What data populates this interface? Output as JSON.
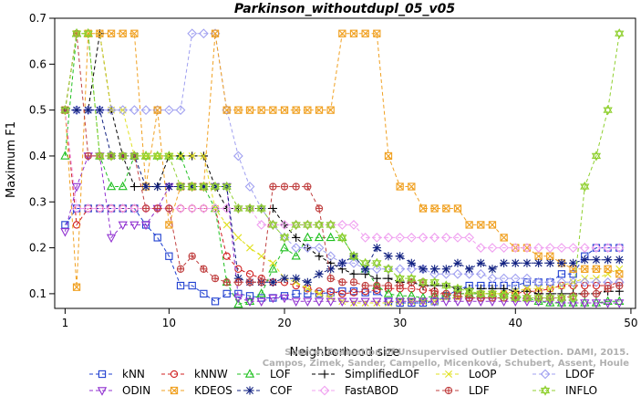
{
  "chart_data": {
    "type": "line",
    "title": "Parkinson_withoutdupl_05_v05",
    "xlabel": "Neighborhood size",
    "ylabel": "Maximum F1",
    "xlim": [
      1,
      50
    ],
    "ylim": [
      0.08,
      0.7
    ],
    "xticks": [
      1,
      10,
      20,
      30,
      40,
      50
    ],
    "yticks": [
      0.1,
      0.2,
      0.3,
      0.4,
      0.5,
      0.6,
      0.7
    ],
    "grid": false,
    "legend_position": "bottom",
    "watermark_lines": [
      "Source: Evaluation of Unsupervised Outlier Detection. DAMI, 2015.",
      "Campos, Zimek, Sander, Campello, Micenková, Schubert, Assent, Houle"
    ],
    "series": [
      {
        "name": "kNN",
        "color": "#1f3fd0",
        "marker": "square",
        "values": [
          0.25,
          0.2857,
          0.2857,
          0.2857,
          0.2857,
          0.2857,
          0.2857,
          0.25,
          0.2222,
          0.1818,
          0.1176,
          0.1176,
          0.1,
          0.0833,
          0.1,
          0.1,
          0.0952,
          0.0909,
          0.0909,
          0.0952,
          0.1,
          0.1,
          0.1,
          0.1026,
          0.1053,
          0.1053,
          0.1026,
          0.1053,
          0.0833,
          0.08,
          0.08,
          0.08,
          0.0833,
          0.0952,
          0.1081,
          0.1176,
          0.1176,
          0.1176,
          0.1176,
          0.1176,
          0.125,
          0.125,
          0.125,
          0.1429,
          0.1429,
          0.1818,
          0.2,
          0.2,
          0.2
        ]
      },
      {
        "name": "kNNW",
        "color": "#d02020",
        "marker": "circle",
        "values": [
          0.5,
          0.25,
          0.2857,
          0.2857,
          0.2857,
          0.2857,
          0.2857,
          0.2857,
          0.2857,
          0.2857,
          0.2857,
          0.2857,
          0.2857,
          0.2857,
          0.1818,
          0.1538,
          0.1429,
          0.1333,
          0.125,
          0.125,
          0.1176,
          0.1111,
          0.1053,
          0.1053,
          0.1,
          0.1026,
          0.1053,
          0.1081,
          0.1111,
          0.1111,
          0.1111,
          0.1081,
          0.1053,
          0.1,
          0.1,
          0.1,
          0.1,
          0.1,
          0.1,
          0.1,
          0.1053,
          0.1053,
          0.1111,
          0.1176,
          0.1176,
          0.1176,
          0.1176,
          0.1176,
          0.125
        ]
      },
      {
        "name": "LOF",
        "color": "#20c020",
        "marker": "triangle",
        "values": [
          0.4,
          0.6667,
          0.6667,
          0.4,
          0.3333,
          0.3333,
          0.4,
          0.4,
          0.4,
          0.4,
          0.4,
          0.3333,
          0.3333,
          0.2857,
          0.125,
          0.0769,
          0.0833,
          0.1,
          0.1538,
          0.2,
          0.1818,
          0.2222,
          0.2222,
          0.2222,
          0.2222,
          0.1818,
          0.1538,
          0.1176,
          0.1,
          0.0952,
          0.0952,
          0.0909,
          0.0952,
          0.0952,
          0.1,
          0.1,
          0.1,
          0.1,
          0.1,
          0.0952,
          0.0909,
          0.0833,
          0.08,
          0.08,
          0.08,
          0.08,
          0.08,
          0.0833,
          0.0833
        ]
      },
      {
        "name": "SimplifiedLOF",
        "color": "#000000",
        "marker": "plus",
        "values": [
          0.5,
          0.5,
          0.5,
          0.6667,
          0.5,
          0.4,
          0.3333,
          0.3333,
          0.3333,
          0.4,
          0.4,
          0.4,
          0.4,
          0.3333,
          0.2857,
          0.2857,
          0.2857,
          0.2857,
          0.2857,
          0.25,
          0.2222,
          0.2,
          0.1818,
          0.1667,
          0.1538,
          0.1429,
          0.1429,
          0.1333,
          0.1333,
          0.125,
          0.125,
          0.1176,
          0.1176,
          0.1176,
          0.1111,
          0.1111,
          0.1111,
          0.1111,
          0.1111,
          0.1053,
          0.1053,
          0.1,
          0.1,
          0.1,
          0.1,
          0.1,
          0.1,
          0.1053,
          0.1053
        ]
      },
      {
        "name": "LoOP",
        "color": "#e0e020",
        "marker": "x",
        "values": [
          0.5,
          0.6667,
          0.6667,
          0.6667,
          0.5,
          0.5,
          0.4,
          0.4,
          0.4,
          0.4,
          0.4,
          0.4,
          0.4,
          0.2857,
          0.25,
          0.2222,
          0.2,
          0.1818,
          0.1667,
          0.1333,
          0.125,
          0.1111,
          0.1,
          0.0909,
          0.0833,
          0.08,
          0.08,
          0.08,
          0.08,
          0.0833,
          0.0833,
          0.0833,
          0.0833,
          0.0909,
          0.0909,
          0.1,
          0.1,
          0.1,
          0.1,
          0.1053,
          0.1111,
          0.1111,
          0.1111,
          0.1176,
          0.125,
          0.1333,
          0.1333,
          0.1429,
          0.1538
        ]
      },
      {
        "name": "LDOF",
        "color": "#a0a0f0",
        "marker": "diamond",
        "values": [
          0.5,
          0.5,
          0.5,
          0.5,
          0.5,
          0.5,
          0.5,
          0.5,
          0.5,
          0.5,
          0.5,
          0.6667,
          0.6667,
          0.6667,
          0.5,
          0.4,
          0.3333,
          0.2857,
          0.25,
          0.2222,
          0.2,
          0.2,
          0.2,
          0.1818,
          0.1667,
          0.1667,
          0.1538,
          0.1538,
          0.1538,
          0.1538,
          0.1538,
          0.1538,
          0.1429,
          0.1429,
          0.1429,
          0.1429,
          0.1429,
          0.1333,
          0.1333,
          0.1333,
          0.1333,
          0.125,
          0.125,
          0.125,
          0.125,
          0.125,
          0.125,
          0.125,
          0.125
        ]
      },
      {
        "name": "ODIN",
        "color": "#9030d0",
        "marker": "triangle-down",
        "values": [
          0.2353,
          0.3333,
          0.4,
          0.4,
          0.2222,
          0.25,
          0.25,
          0.25,
          0.2857,
          0.3333,
          0.3333,
          0.3333,
          0.3333,
          0.3333,
          0.3333,
          0.0909,
          0.0833,
          0.0833,
          0.0909,
          0.0909,
          0.0833,
          0.0833,
          0.0833,
          0.0833,
          0.0833,
          0.0833,
          0.0833,
          0.0833,
          0.0833,
          0.0833,
          0.0833,
          0.0833,
          0.0833,
          0.0833,
          0.0833,
          0.0833,
          0.0833,
          0.0833,
          0.0833,
          0.0833,
          0.0833,
          0.0833,
          0.0833,
          0.08,
          0.08,
          0.08,
          0.08,
          0.08,
          0.08
        ]
      },
      {
        "name": "KDEOS",
        "color": "#f0a020",
        "marker": "square-x",
        "values": [
          0.5,
          0.1143,
          0.6667,
          0.6667,
          0.6667,
          0.6667,
          0.6667,
          0.3333,
          0.5,
          0.25,
          0.3333,
          0.3333,
          0.3333,
          0.6667,
          0.5,
          0.5,
          0.5,
          0.5,
          0.5,
          0.5,
          0.5,
          0.5,
          0.5,
          0.5,
          0.6667,
          0.6667,
          0.6667,
          0.6667,
          0.4,
          0.3333,
          0.3333,
          0.2857,
          0.2857,
          0.2857,
          0.2857,
          0.25,
          0.25,
          0.25,
          0.2222,
          0.2,
          0.2,
          0.1818,
          0.1818,
          0.1667,
          0.1538,
          0.1538,
          0.1538,
          0.1538,
          0.1429
        ]
      },
      {
        "name": "COF",
        "color": "#102080",
        "marker": "asterisk",
        "values": [
          0.5,
          0.5,
          0.5,
          0.5,
          0.4,
          0.4,
          0.4,
          0.3333,
          0.3333,
          0.3333,
          0.3333,
          0.3333,
          0.3333,
          0.3333,
          0.3333,
          0.1333,
          0.125,
          0.125,
          0.125,
          0.1333,
          0.1333,
          0.125,
          0.1429,
          0.1538,
          0.1667,
          0.1818,
          0.1538,
          0.2,
          0.1818,
          0.1818,
          0.1667,
          0.1538,
          0.1538,
          0.1538,
          0.1667,
          0.1538,
          0.1667,
          0.1538,
          0.1667,
          0.1667,
          0.1667,
          0.1667,
          0.1667,
          0.1667,
          0.1667,
          0.1739,
          0.1739,
          0.1739,
          0.1739
        ]
      },
      {
        "name": "FastABOD",
        "color": "#f0a0f0",
        "marker": "diamond",
        "values": [
          0.5,
          0.2857,
          0.2857,
          0.2857,
          0.2857,
          0.2857,
          0.2857,
          0.2857,
          0.2857,
          0.2857,
          0.2857,
          0.2857,
          0.2857,
          0.2857,
          0.2857,
          0.2857,
          0.2857,
          0.25,
          0.25,
          0.25,
          0.25,
          0.25,
          0.25,
          0.25,
          0.25,
          0.25,
          0.2222,
          0.2222,
          0.2222,
          0.2222,
          0.2222,
          0.2222,
          0.2222,
          0.2222,
          0.2222,
          0.2222,
          0.2,
          0.2,
          0.2,
          0.2,
          0.2,
          0.2,
          0.2,
          0.2,
          0.2,
          0.2,
          0.2,
          0.2,
          0.2
        ]
      },
      {
        "name": "LDF",
        "color": "#c04040",
        "marker": "circle-plus",
        "values": [
          0.5,
          0.6667,
          0.4,
          0.4,
          0.4,
          0.4,
          0.4,
          0.2857,
          0.2857,
          0.2857,
          0.1538,
          0.1818,
          0.1538,
          0.1333,
          0.125,
          0.125,
          0.125,
          0.125,
          0.3333,
          0.3333,
          0.3333,
          0.3333,
          0.2857,
          0.1333,
          0.125,
          0.125,
          0.1176,
          0.1176,
          0.1176,
          0.1176,
          0.125,
          0.125,
          0.1,
          0.1,
          0.0952,
          0.0909,
          0.0909,
          0.0909,
          0.0909,
          0.0909,
          0.0909,
          0.0909,
          0.0909,
          0.0909,
          0.0952,
          0.1,
          0.1,
          0.1111,
          0.1176
        ]
      },
      {
        "name": "INFLO",
        "color": "#90d030",
        "marker": "star",
        "values": [
          0.5,
          0.6667,
          0.6667,
          0.4,
          0.4,
          0.4,
          0.4,
          0.4,
          0.4,
          0.4,
          0.3333,
          0.3333,
          0.3333,
          0.3333,
          0.3333,
          0.2857,
          0.2857,
          0.2857,
          0.25,
          0.2222,
          0.25,
          0.25,
          0.25,
          0.25,
          0.2222,
          0.1818,
          0.1667,
          0.1667,
          0.1538,
          0.1333,
          0.1333,
          0.125,
          0.125,
          0.1176,
          0.1111,
          0.1053,
          0.1,
          0.1,
          0.0952,
          0.0909,
          0.0909,
          0.0909,
          0.0909,
          0.0909,
          0.0909,
          0.3333,
          0.4,
          0.5,
          0.6667
        ]
      }
    ]
  }
}
